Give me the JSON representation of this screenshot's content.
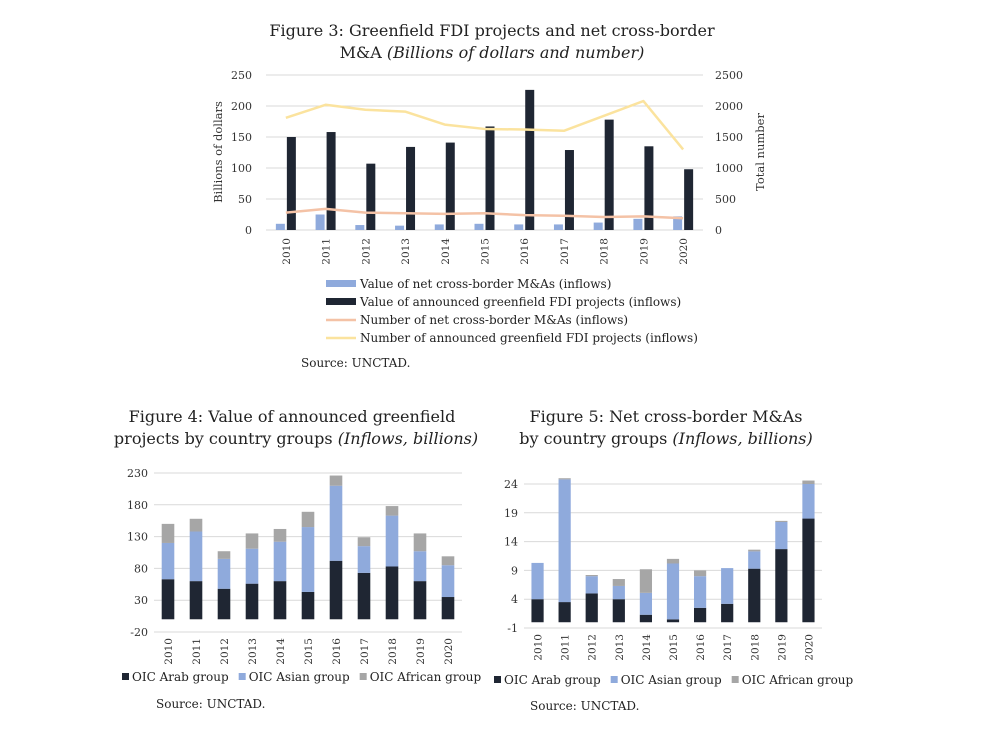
{
  "colors": {
    "ma_value": "#8faadc",
    "greenfield_value": "#1f2633",
    "ma_number": "#f4c2a6",
    "greenfield_number": "#fbe39e",
    "oic_arab": "#1f2633",
    "oic_asian": "#8faadc",
    "oic_african": "#a6a6a6",
    "grid": "#d9d9d9"
  },
  "chart_data": [
    {
      "id": "fig3",
      "type": "bar",
      "title_main": "Figure 3: Greenfield FDI projects and net cross-border",
      "title_line2": "M&A",
      "title_italic": "(Billions of dollars and number)",
      "ylabel": "Billions of dollars",
      "y2label": "Total number",
      "ylim": [
        0,
        250
      ],
      "yticks": [
        0,
        50,
        100,
        150,
        200,
        250
      ],
      "y2lim": [
        0,
        2500
      ],
      "y2ticks": [
        0,
        500,
        1000,
        1500,
        2000,
        2500
      ],
      "grid": true,
      "categories": [
        "2010",
        "2011",
        "2012",
        "2013",
        "2014",
        "2015",
        "2016",
        "2017",
        "2018",
        "2019",
        "2020"
      ],
      "bar_series": [
        {
          "name": "Value of net cross-border M&As (inflows)",
          "color_key": "ma_value",
          "values": [
            10,
            25,
            8,
            7,
            9,
            10,
            9,
            9,
            12,
            18,
            22
          ]
        },
        {
          "name": "Value of announced greenfield FDI projects (inflows)",
          "color_key": "greenfield_value",
          "values": [
            150,
            158,
            107,
            134,
            141,
            167,
            226,
            129,
            178,
            135,
            98
          ]
        }
      ],
      "line_series": [
        {
          "name": "Number of net cross-border M&As (inflows)",
          "color_key": "ma_number",
          "values": [
            280,
            340,
            280,
            270,
            260,
            270,
            240,
            230,
            210,
            220,
            190
          ]
        },
        {
          "name": "Number of announced greenfield FDI projects (inflows)",
          "color_key": "greenfield_number",
          "values": [
            1810,
            2020,
            1940,
            1910,
            1700,
            1630,
            1620,
            1600,
            1840,
            2080,
            1300
          ]
        }
      ],
      "legend_placement": "bottom",
      "source": "Source: UNCTAD."
    },
    {
      "id": "fig4",
      "type": "bar",
      "stacked": true,
      "title_main_a": "Figure 4:",
      "title_main_b": "Value of announced greenfield",
      "title_line2": "projects by country groups",
      "title_italic": "(Inflows, billions)",
      "ylim": [
        -20,
        230
      ],
      "yticks": [
        -20,
        30,
        80,
        130,
        180,
        230
      ],
      "grid": true,
      "categories": [
        "2010",
        "2011",
        "2012",
        "2013",
        "2014",
        "2015",
        "2016",
        "2017",
        "2018",
        "2019",
        "2020"
      ],
      "series": [
        {
          "name": "OIC Arab group",
          "color_key": "oic_arab",
          "values": [
            63,
            60,
            48,
            56,
            60,
            43,
            92,
            73,
            83,
            60,
            35
          ]
        },
        {
          "name": "OIC Asian group",
          "color_key": "oic_asian",
          "values": [
            57,
            78,
            47,
            55,
            62,
            102,
            118,
            42,
            80,
            47,
            50
          ]
        },
        {
          "name": "OIC African group",
          "color_key": "oic_african",
          "values": [
            30,
            20,
            12,
            24,
            20,
            24,
            16,
            14,
            15,
            28,
            14
          ]
        }
      ],
      "legend_placement": "bottom",
      "source": "Source: UNCTAD."
    },
    {
      "id": "fig5",
      "type": "bar",
      "stacked": true,
      "title_main": "Figure 5: Net cross-border M&As",
      "title_line2": "by country groups",
      "title_italic": "(Inflows, billions)",
      "ylim": [
        -1,
        24
      ],
      "yticks": [
        -1,
        4,
        9,
        14,
        19,
        24
      ],
      "grid": true,
      "categories": [
        "2010",
        "2011",
        "2012",
        "2013",
        "2014",
        "2015",
        "2016",
        "2017",
        "2018",
        "2019",
        "2020"
      ],
      "series": [
        {
          "name": "OIC Arab group",
          "color_key": "oic_arab",
          "values": [
            4,
            3.5,
            5,
            4,
            1.3,
            0.5,
            2.5,
            3.2,
            9.3,
            12.7,
            18
          ]
        },
        {
          "name": "OIC Asian group",
          "color_key": "oic_asian",
          "values": [
            6.3,
            21.3,
            3,
            2.3,
            3.8,
            9.7,
            5.5,
            6.2,
            3,
            4.7,
            6
          ]
        },
        {
          "name": "OIC African group",
          "color_key": "oic_african",
          "values": [
            0,
            0.2,
            0.2,
            1.2,
            4.1,
            0.8,
            1,
            0,
            0.3,
            0.2,
            0.6
          ]
        }
      ],
      "legend_placement": "bottom",
      "source": "Source: UNCTAD."
    }
  ]
}
